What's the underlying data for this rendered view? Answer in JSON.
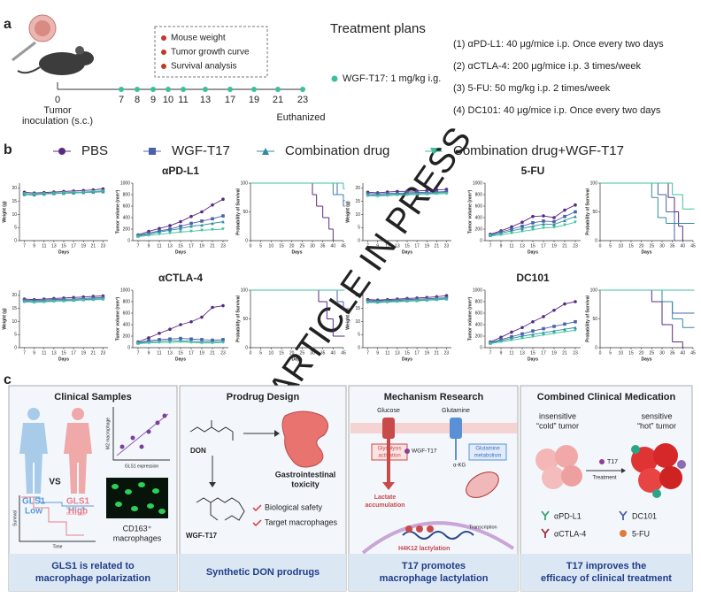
{
  "panel_a": {
    "label": "a",
    "legend_items": [
      "Mouse weight",
      "Tumor growth curve",
      "Survival analysis"
    ],
    "timeline_days": [
      0,
      7,
      8,
      9,
      10,
      11,
      13,
      17,
      19,
      21,
      23
    ],
    "start_label": [
      "Tumor",
      "inoculation (s.c.)"
    ],
    "end_label": "Euthanized",
    "dose": "WGF-T17: 1 mg/kg i.g.",
    "plans_title": "Treatment plans",
    "plans": [
      "(1) αPD-L1: 40 μg/mice i.p. Once every two days",
      "(2) αCTLA-4: 200 μg/mice i.p. 3 times/week",
      "(3) 5-FU: 50 mg/kg i.p. 2 times/week",
      "(4) DC101: 40 μg/mice i.p. Once every two days"
    ]
  },
  "panel_b": {
    "label": "b",
    "series": [
      {
        "name": "PBS",
        "color": "#5a2a82",
        "marker": "circle"
      },
      {
        "name": "WGF-T17",
        "color": "#4a62a8",
        "marker": "square"
      },
      {
        "name": "Combination drug",
        "color": "#2f8a9e",
        "marker": "triangle"
      },
      {
        "name": "Combination drug+WGF-T17",
        "color": "#3cc29e",
        "marker": "triangle-down"
      }
    ],
    "days": [
      7,
      9,
      11,
      13,
      15,
      17,
      19,
      21,
      23
    ],
    "xlim": [
      6,
      24
    ],
    "x_label": "Days",
    "weight_axis": {
      "label": "Weight (g)",
      "ylim": [
        0,
        22
      ],
      "yticks": [
        0,
        5,
        10,
        15,
        20
      ]
    },
    "tumor_axis": {
      "label": "Tumor volume (mm³)",
      "ylim": [
        0,
        1000
      ],
      "yticks": [
        0,
        200,
        400,
        600,
        800,
        1000
      ]
    },
    "survival_axis": {
      "label": "Probability of Survival",
      "xlim": [
        0,
        45
      ],
      "xticks": [
        0,
        5,
        10,
        15,
        20,
        25,
        30,
        35,
        40,
        45
      ],
      "ylim": [
        0,
        100
      ],
      "yticks": [
        0,
        50,
        100
      ]
    },
    "groups": [
      {
        "title": "αPD-L1",
        "weight": [
          [
            18.5,
            18.2,
            18.4,
            18.6,
            18.8,
            19,
            19.2,
            19.4,
            19.8
          ],
          [
            18,
            17.8,
            18,
            18.2,
            18.3,
            18.5,
            18.6,
            18.8,
            19
          ],
          [
            17.6,
            17.5,
            17.8,
            18,
            18.1,
            18.2,
            18.4,
            18.5,
            18.7
          ],
          [
            17.9,
            17.7,
            17.9,
            18.1,
            18.2,
            18.4,
            18.5,
            18.7,
            18.9
          ]
        ],
        "tumor": [
          [
            100,
            160,
            210,
            260,
            330,
            420,
            500,
            620,
            720
          ],
          [
            90,
            130,
            170,
            200,
            250,
            300,
            340,
            380,
            430
          ],
          [
            80,
            110,
            150,
            180,
            210,
            250,
            270,
            300,
            330
          ],
          [
            70,
            90,
            110,
            130,
            150,
            160,
            180,
            190,
            200
          ]
        ],
        "survival": [
          {
            "x": [
              0,
              28,
              30,
              32,
              35,
              38,
              40
            ],
            "values": [
              100,
              100,
              80,
              60,
              40,
              20,
              0
            ]
          },
          {
            "x": [
              0,
              38,
              42,
              45
            ],
            "values": [
              100,
              100,
              80,
              60
            ]
          },
          {
            "x": [
              0,
              40,
              45
            ],
            "values": [
              100,
              80,
              70
            ]
          },
          {
            "x": [
              0,
              45
            ],
            "values": [
              100,
              90
            ]
          }
        ]
      },
      {
        "title": "5-FU",
        "weight": [
          [
            18.5,
            18.3,
            18.6,
            18.8,
            18.9,
            19,
            19.2,
            19.4,
            19.6
          ],
          [
            18,
            17.9,
            18,
            18.1,
            18.3,
            18.4,
            18.5,
            18.6,
            18.8
          ],
          [
            17.5,
            17.4,
            17.6,
            17.8,
            17.9,
            18,
            18.1,
            18.3,
            18.4
          ],
          [
            17.2,
            17,
            17.2,
            17.4,
            17.5,
            17.6,
            17.8,
            17.9,
            18
          ]
        ],
        "tumor": [
          [
            110,
            170,
            240,
            320,
            420,
            430,
            400,
            530,
            620
          ],
          [
            100,
            150,
            200,
            250,
            310,
            340,
            330,
            420,
            500
          ],
          [
            90,
            130,
            170,
            210,
            250,
            290,
            280,
            350,
            420
          ],
          [
            80,
            100,
            130,
            160,
            190,
            220,
            230,
            270,
            320
          ]
        ],
        "survival": [
          {
            "x": [
              0,
              30,
              33,
              36,
              38,
              40
            ],
            "values": [
              100,
              100,
              75,
              50,
              25,
              0
            ]
          },
          {
            "x": [
              0,
              28,
              32,
              36
            ],
            "values": [
              100,
              80,
              50,
              0
            ]
          },
          {
            "x": [
              0,
              25,
              28,
              32,
              45
            ],
            "values": [
              100,
              75,
              40,
              30,
              30
            ]
          },
          {
            "x": [
              0,
              35,
              40,
              45
            ],
            "values": [
              100,
              80,
              55,
              55
            ]
          }
        ]
      },
      {
        "title": "αCTLA-4",
        "weight": [
          [
            18.6,
            18.4,
            18.6,
            18.8,
            19,
            19.2,
            19.4,
            19.6,
            19.8
          ],
          [
            18.2,
            18,
            18.2,
            18.4,
            18.5,
            18.6,
            18.8,
            19,
            19.2
          ],
          [
            17.8,
            17.6,
            17.8,
            18,
            18.1,
            18.2,
            18.4,
            18.6,
            18.7
          ],
          [
            17.5,
            17.3,
            17.5,
            17.7,
            17.8,
            18,
            18.2,
            18.3,
            18.5
          ]
        ],
        "tumor": [
          [
            100,
            170,
            250,
            320,
            400,
            450,
            530,
            700,
            730
          ],
          [
            90,
            120,
            140,
            150,
            160,
            150,
            140,
            130,
            140
          ],
          [
            80,
            100,
            110,
            120,
            120,
            110,
            100,
            100,
            110
          ],
          [
            70,
            80,
            90,
            90,
            100,
            90,
            80,
            80,
            90
          ]
        ],
        "survival": [
          {
            "x": [
              0,
              33,
              37,
              40,
              45
            ],
            "values": [
              100,
              80,
              50,
              20,
              20
            ]
          },
          {
            "x": [
              0,
              42,
              45
            ],
            "values": [
              100,
              80,
              70
            ]
          },
          {
            "x": [
              0,
              45
            ],
            "values": [
              100,
              100
            ]
          },
          {
            "x": [
              0,
              45
            ],
            "values": [
              100,
              100
            ]
          }
        ]
      },
      {
        "title": "DC101",
        "weight": [
          [
            18.4,
            18.2,
            18.4,
            18.6,
            18.8,
            19,
            19.2,
            19.5,
            19.9
          ],
          [
            18,
            17.9,
            18.1,
            18.2,
            18.4,
            18.5,
            18.7,
            18.9,
            19.1
          ],
          [
            17.6,
            17.5,
            17.7,
            17.9,
            18,
            18.1,
            18.3,
            18.5,
            18.7
          ],
          [
            17.3,
            17.2,
            17.4,
            17.6,
            17.7,
            17.9,
            18.1,
            18.3,
            18.5
          ]
        ],
        "tumor": [
          [
            100,
            180,
            270,
            350,
            450,
            540,
            650,
            760,
            800
          ],
          [
            90,
            140,
            190,
            240,
            290,
            330,
            370,
            410,
            450
          ],
          [
            80,
            120,
            160,
            200,
            230,
            260,
            290,
            320,
            350
          ],
          [
            70,
            100,
            130,
            160,
            190,
            220,
            250,
            280,
            300
          ]
        ],
        "survival": [
          {
            "x": [
              0,
              25,
              30,
              35,
              40
            ],
            "values": [
              100,
              80,
              40,
              10,
              0
            ]
          },
          {
            "x": [
              0,
              30,
              35,
              45
            ],
            "values": [
              100,
              80,
              60,
              60
            ]
          },
          {
            "x": [
              0,
              30,
              35,
              40,
              45
            ],
            "values": [
              100,
              80,
              50,
              35,
              35
            ]
          },
          {
            "x": [
              0,
              45
            ],
            "values": [
              100,
              100
            ]
          }
        ]
      }
    ]
  },
  "panel_c": {
    "label": "c",
    "clinical_samples": {
      "title": "Clinical Samples",
      "low": [
        "GLS1",
        "Low"
      ],
      "vs": "VS",
      "high": [
        "GLS1",
        "High"
      ],
      "y_label": "M2 macrophage",
      "x_label": "GLS1 expression",
      "survival_label": "Survival",
      "time_label": "Time",
      "legend": [
        "GLS1-Low",
        "GLS1-High"
      ],
      "image_caption": [
        "CD163⁺",
        "macrophages"
      ],
      "footer": [
        "GLS1 is related to",
        "macrophage polarization"
      ]
    },
    "prodrug_design": {
      "title": "Prodrug Design",
      "don": "DON",
      "prodrug": "WGF-T17",
      "toxicity": [
        "Gastrointestinal",
        "toxicity"
      ],
      "benefits": [
        "Biological safety",
        "Target macrophages"
      ],
      "footer": [
        "Synthetic DON prodrugs"
      ]
    },
    "mechanism_research": {
      "title": "Mechanism Research",
      "glucose": "Glucose",
      "glutamine": "Glutamine",
      "glycolysis": [
        "Glycolysis",
        "activation"
      ],
      "drug": "WGF-T17",
      "glutamine_metabolism": [
        "Glutamine",
        "metabolism"
      ],
      "akg": "α-KG",
      "lactate": [
        "Lactate",
        "accumulation"
      ],
      "lactylation": "H4K12 lactylation",
      "transcription": "Transcription",
      "footer": [
        "T17 promotes",
        "macrophage lactylation"
      ]
    },
    "combined_medication": {
      "title": "Combined Clinical Medication",
      "cold": [
        "insensitive",
        "“cold” tumor"
      ],
      "hot": [
        "sensitive",
        "“hot” tumor"
      ],
      "drug": "T17",
      "treatment": "Treatment",
      "agents": [
        "αPD-L1",
        "DC101",
        "αCTLA-4",
        "5-FU"
      ],
      "footer": [
        "T17 improves the",
        "efficacy of clinical treatment"
      ]
    }
  },
  "watermark": "ARTICLE IN PRESS"
}
